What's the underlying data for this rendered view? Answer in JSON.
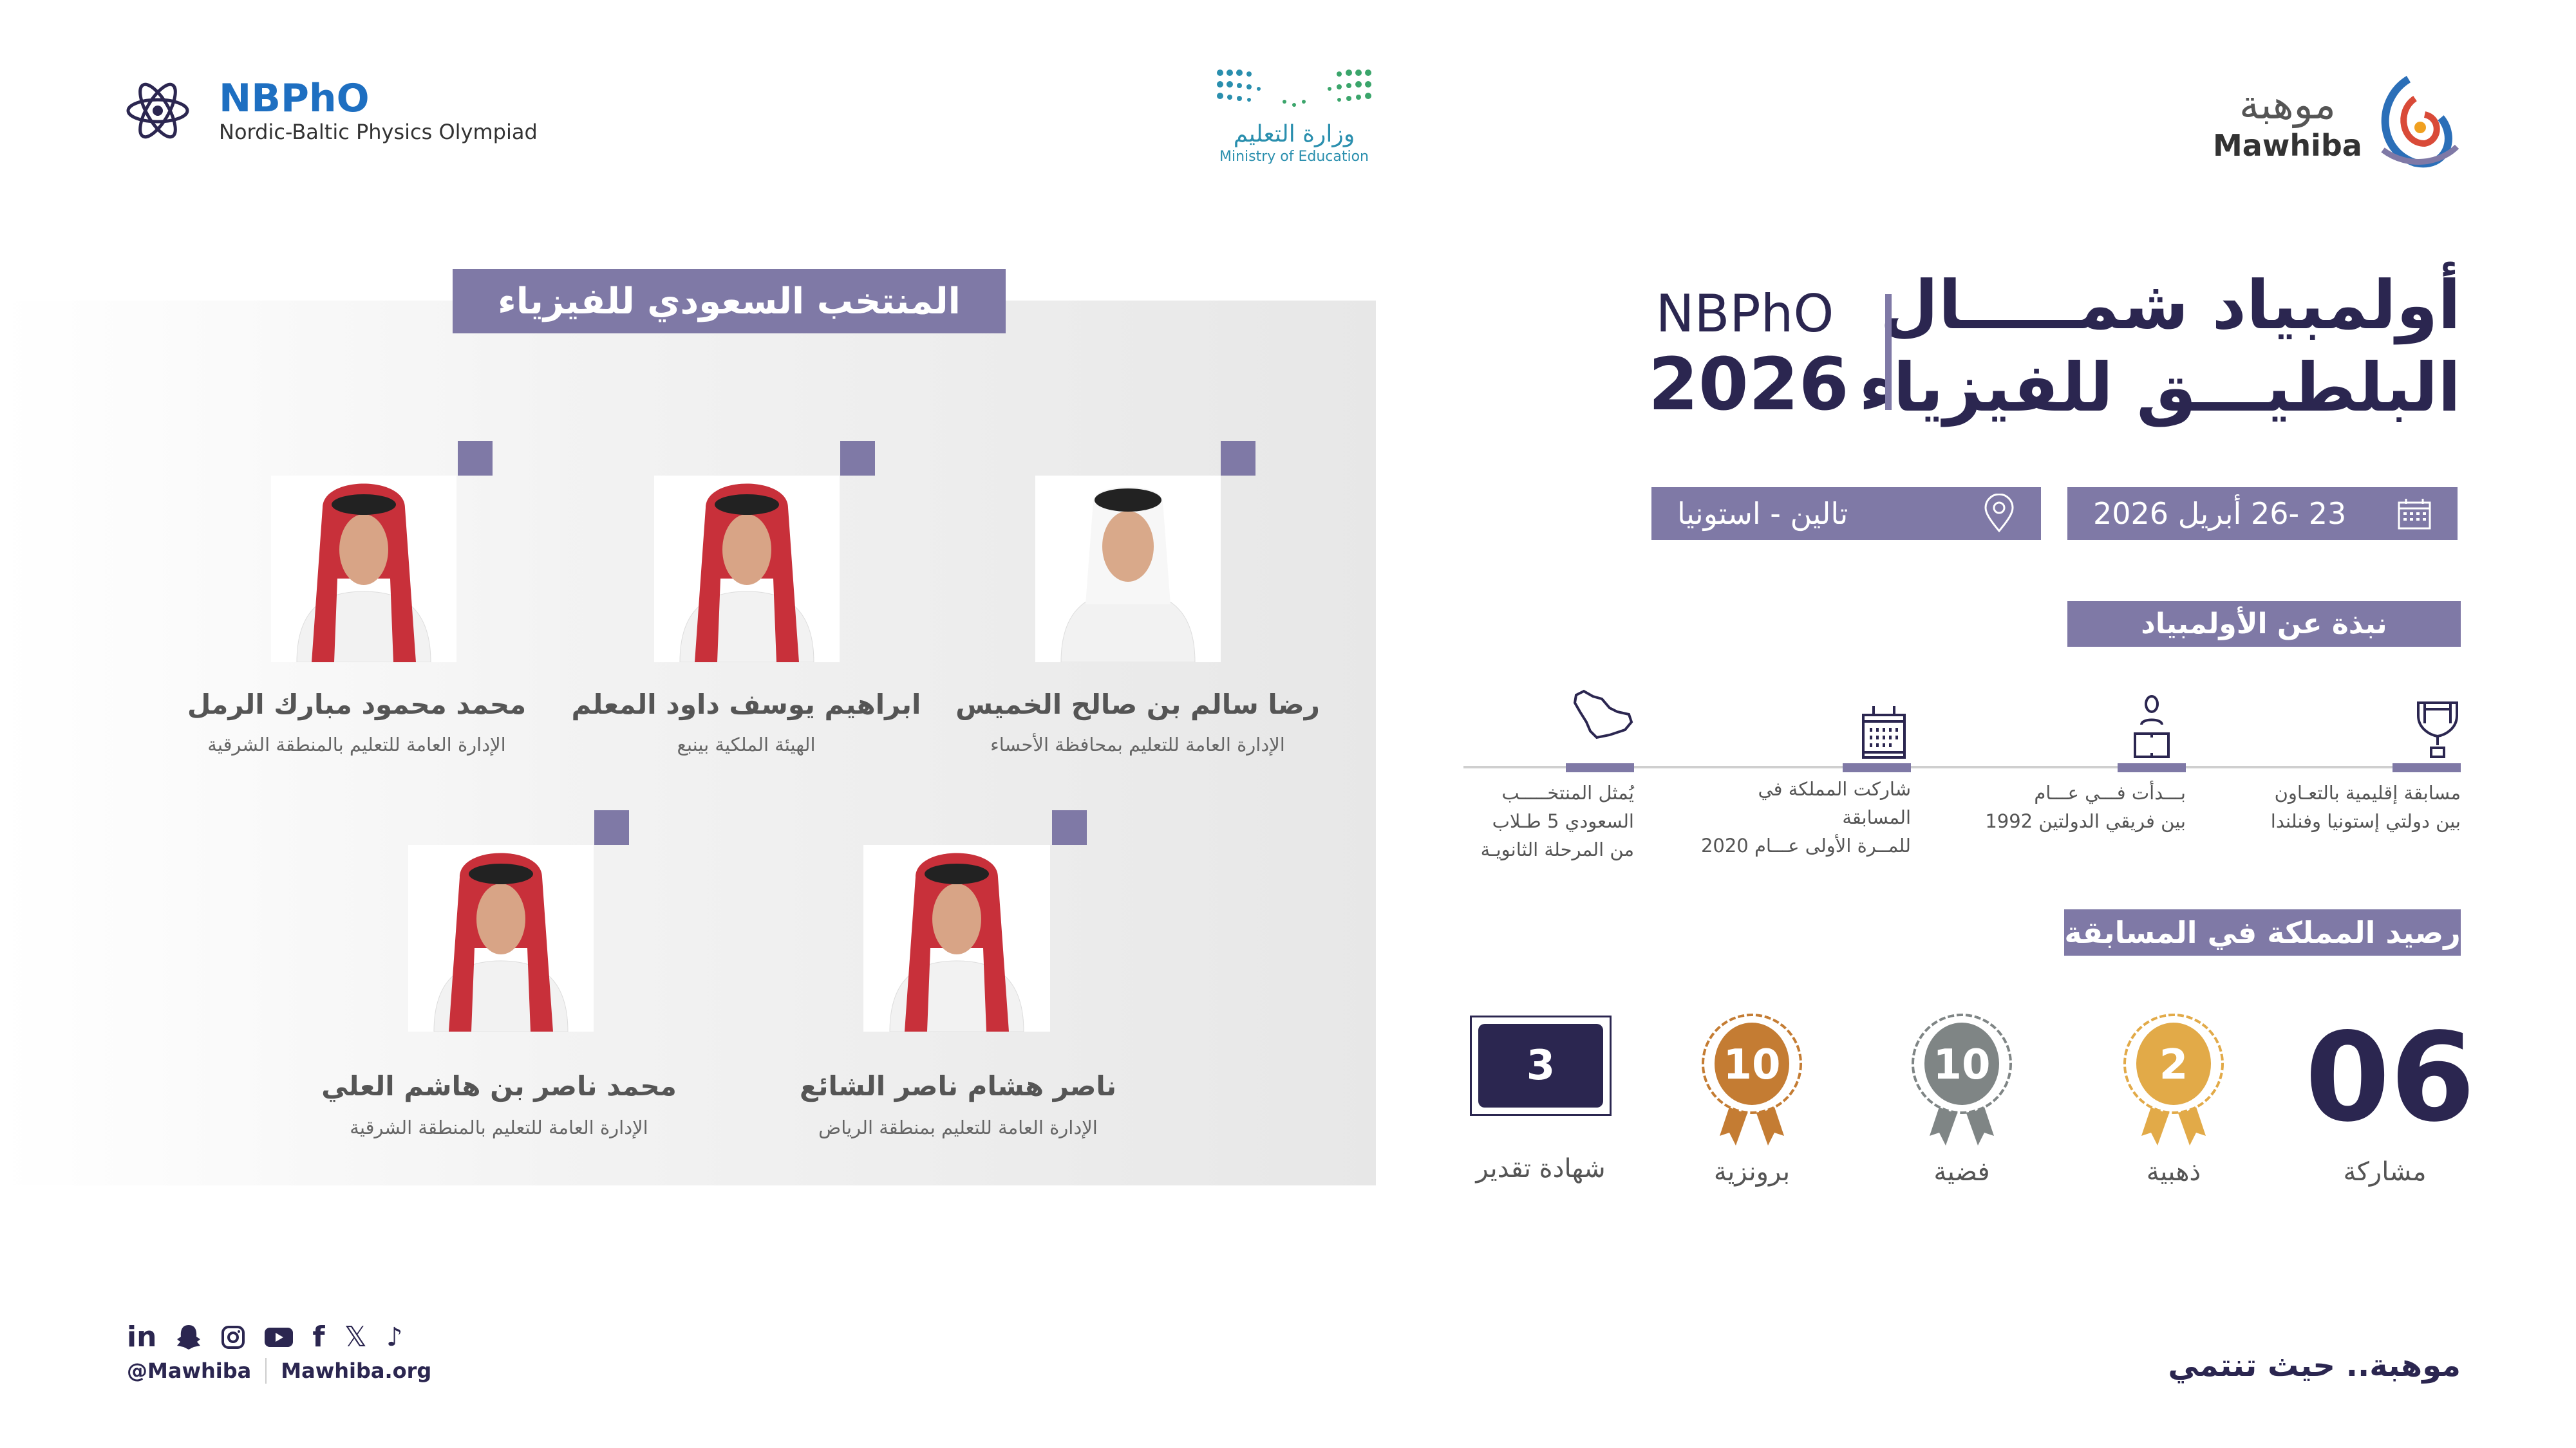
{
  "header": {
    "nbpho_logo": {
      "title": "NBPhO",
      "subtitle": "Nordic-Baltic Physics Olympiad"
    },
    "ministry_logo": {
      "arabic": "وزارة التعليم",
      "english": "Ministry of Education"
    },
    "mawhiba_logo": {
      "arabic": "موهبة",
      "english": "Mawhiba"
    }
  },
  "team": {
    "title": "المنتخب السعودي للفيزياء",
    "members": [
      {
        "name": "رضا سالم بن صالح الخميس",
        "org": "الإدارة العامة للتعليم بمحافظة الأحساء"
      },
      {
        "name": "ابراهيم يوسف داود المعلم",
        "org": "الهيئة الملكية بينبع"
      },
      {
        "name": "محمد محمود مبارك الرمل",
        "org": "الإدارة العامة للتعليم بالمنطقة الشرقية"
      },
      {
        "name": "ناصر هشام ناصر الشائع",
        "org": "الإدارة العامة للتعليم بمنطقة الرياض"
      },
      {
        "name": "محمد ناصر بن هاشم العلي",
        "org": "الإدارة العامة للتعليم بالمنطقة الشرقية"
      }
    ]
  },
  "event": {
    "title_line1": "أولمبياد شمـــــال",
    "title_line2": "البلطيـــق للفيزياء",
    "short": "NBPhO",
    "year": "2026",
    "date": "23 -26 أبريل 2026",
    "location": "تالين - استونيا",
    "date_icon": "calendar-icon",
    "location_icon": "location-pin-icon"
  },
  "about": {
    "title": "نبذة عن الأولمبياد",
    "items": [
      {
        "icon": "trophy-icon",
        "lines": [
          "مسابقة إقليمية بالتعـاون",
          "بين دولتي إستونيا وفنلندا"
        ]
      },
      {
        "icon": "person-icon",
        "lines": [
          "بـــدأت فـــي عـــام",
          "بين فريقي الدولتين 1992"
        ]
      },
      {
        "icon": "calendar-icon",
        "lines": [
          "شاركت المملكة في المسابقة",
          "للمــرة الأولى عـــام 2020"
        ]
      },
      {
        "icon": "saudi-map-icon",
        "lines": [
          "يُمثل المنتخـــــب",
          "السعودي 5 طـلاب",
          "من المرحلة الثانويـة"
        ]
      }
    ]
  },
  "record": {
    "title": "رصيد المملكة في المسابقة",
    "participations": {
      "value": "06",
      "label": "مشاركة"
    },
    "gold": {
      "value": "2",
      "label": "ذهبية",
      "color": "#e2aa48"
    },
    "silver": {
      "value": "10",
      "label": "فضية",
      "color": "#7f8585"
    },
    "bronze": {
      "value": "10",
      "label": "برونزية",
      "color": "#c47c33"
    },
    "certificate": {
      "value": "3",
      "label": "شهادة تقدير",
      "color": "#2b2650"
    }
  },
  "footer": {
    "social_icons": [
      "linkedin-icon",
      "snapchat-icon",
      "instagram-icon",
      "youtube-icon",
      "facebook-icon",
      "x-icon",
      "tiktok-icon"
    ],
    "handle": "@Mawhiba",
    "website": "Mawhiba.org",
    "slogan": "موهبة.. حيث تنتمي"
  },
  "colors": {
    "accent": "#7f79a6",
    "navy": "#2b2650",
    "brand_blue": "#1e6fc1"
  }
}
